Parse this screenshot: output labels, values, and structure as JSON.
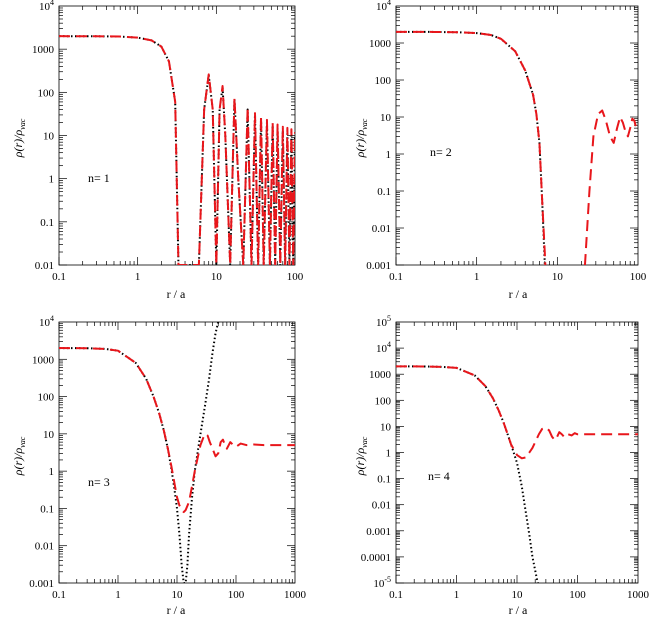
{
  "colors": {
    "exact": "#000000",
    "approx": "#e8161b",
    "frame": "#000000"
  },
  "chart_data": [
    {
      "id": "p1",
      "type": "line",
      "xscale": "log",
      "yscale": "log",
      "xlim": [
        0.1,
        100
      ],
      "ylim": [
        0.01,
        10000
      ],
      "xticks": [
        {
          "v": 0.1,
          "label": "0.1"
        },
        {
          "v": 1,
          "label": "1"
        },
        {
          "v": 10,
          "label": "10"
        },
        {
          "v": 100,
          "label": "100"
        }
      ],
      "yticks": [
        {
          "v": 0.01,
          "label": "0.01"
        },
        {
          "v": 0.1,
          "label": "0.1"
        },
        {
          "v": 1,
          "label": "1"
        },
        {
          "v": 10,
          "label": "10"
        },
        {
          "v": 100,
          "label": "100"
        },
        {
          "v": 1000,
          "label": "1000"
        },
        {
          "v": 10000,
          "label": "10",
          "sup": "4"
        }
      ],
      "xlabel": "r / a",
      "ylabel": {
        "main": "ρ(r)/ρ",
        "sub": "vac"
      },
      "annotation": "n= 1",
      "series": [
        {
          "name": "exact",
          "style": "dotted",
          "color": "#000000",
          "x": [
            0.1,
            0.3,
            0.6,
            1,
            1.5,
            2,
            2.5,
            3,
            3.3,
            3.5,
            6,
            7,
            8,
            9,
            10,
            11,
            12,
            13,
            15,
            17,
            19,
            22,
            25,
            28,
            31,
            34,
            37,
            40,
            44,
            48,
            52,
            56,
            60,
            65,
            70,
            75,
            80,
            85,
            90,
            95,
            100
          ],
          "y": [
            2000,
            1990,
            1960,
            1850,
            1600,
            1150,
            520,
            60,
            0.01,
            0.01,
            0.01,
            40,
            250,
            40,
            0.01,
            40,
            130,
            10,
            0.01,
            70,
            1,
            0.01,
            40,
            0.01,
            30,
            0.01,
            25,
            0.01,
            20,
            0.01,
            17,
            0.01,
            15,
            0.01,
            13,
            0.01,
            12,
            0.01,
            11,
            0.01,
            10
          ]
        },
        {
          "name": "approx",
          "style": "dashed",
          "color": "#e8161b",
          "x": [
            0.1,
            0.3,
            0.6,
            1,
            1.5,
            2,
            2.5,
            3,
            3.3,
            3.5,
            6,
            7,
            8,
            9,
            10,
            11,
            12,
            13,
            15,
            17,
            19,
            22,
            25,
            28,
            31,
            34,
            37,
            40,
            44,
            48,
            52,
            56,
            60,
            65,
            70,
            75,
            80,
            85,
            90,
            95,
            100
          ],
          "y": [
            2000,
            1990,
            1960,
            1850,
            1600,
            1150,
            520,
            60,
            0.01,
            0.01,
            0.01,
            40,
            260,
            40,
            0.01,
            40,
            140,
            10,
            0.01,
            75,
            1,
            0.01,
            45,
            0.01,
            33,
            0.01,
            28,
            0.01,
            23,
            0.01,
            20,
            0.01,
            18,
            0.01,
            16,
            0.01,
            15,
            0.01,
            14,
            0.01,
            12
          ]
        }
      ]
    },
    {
      "id": "p2",
      "type": "line",
      "xscale": "log",
      "yscale": "log",
      "xlim": [
        0.1,
        100
      ],
      "ylim": [
        0.001,
        10000
      ],
      "xticks": [
        {
          "v": 0.1,
          "label": "0.1"
        },
        {
          "v": 1,
          "label": "1"
        },
        {
          "v": 10,
          "label": "10"
        },
        {
          "v": 100,
          "label": "100"
        }
      ],
      "yticks": [
        {
          "v": 0.001,
          "label": "0.001"
        },
        {
          "v": 0.01,
          "label": "0.01"
        },
        {
          "v": 0.1,
          "label": "0.1"
        },
        {
          "v": 1,
          "label": "1"
        },
        {
          "v": 10,
          "label": "10"
        },
        {
          "v": 100,
          "label": "100"
        },
        {
          "v": 1000,
          "label": "1000"
        },
        {
          "v": 10000,
          "label": "10",
          "sup": "4"
        }
      ],
      "xlabel": "r / a",
      "ylabel": {
        "main": "ρ(r)/ρ",
        "sub": "vac"
      },
      "annotation": "n= 2",
      "series": [
        {
          "name": "exact",
          "style": "dotted",
          "color": "#000000",
          "x": [
            0.1,
            0.3,
            0.6,
            1,
            1.5,
            2,
            3,
            4,
            5,
            5.5,
            6,
            6.5,
            7
          ],
          "y": [
            2000,
            1990,
            1950,
            1850,
            1650,
            1300,
            600,
            180,
            40,
            12,
            2,
            0.05,
            0.001
          ]
        },
        {
          "name": "approx",
          "style": "dashed",
          "color": "#e8161b",
          "x": [
            0.1,
            0.3,
            0.6,
            1,
            1.5,
            2,
            3,
            4,
            5,
            5.5,
            6,
            6.5,
            7,
            7.1
          ],
          "y": [
            2000,
            1990,
            1950,
            1850,
            1650,
            1300,
            600,
            180,
            40,
            12,
            2,
            0.05,
            0.002,
            0.001
          ]
        },
        {
          "name": "approx-tail",
          "style": "dashed",
          "color": "#e8161b",
          "x": [
            22,
            25,
            28,
            32,
            36,
            40,
            45,
            50,
            55,
            60,
            65,
            70,
            75,
            80,
            85,
            90,
            95,
            100
          ],
          "y": [
            0.001,
            0.1,
            3,
            12,
            15,
            8,
            3,
            2,
            5,
            10,
            7,
            4,
            3,
            5,
            9,
            8,
            5,
            4
          ]
        }
      ]
    },
    {
      "id": "p3",
      "type": "line",
      "xscale": "log",
      "yscale": "log",
      "xlim": [
        0.1,
        1000
      ],
      "ylim": [
        0.001,
        10000
      ],
      "xticks": [
        {
          "v": 0.1,
          "label": "0.1"
        },
        {
          "v": 1,
          "label": "1"
        },
        {
          "v": 10,
          "label": "10"
        },
        {
          "v": 100,
          "label": "100"
        },
        {
          "v": 1000,
          "label": "1000"
        }
      ],
      "yticks": [
        {
          "v": 0.001,
          "label": "0.001"
        },
        {
          "v": 0.01,
          "label": "0.01"
        },
        {
          "v": 0.1,
          "label": "0.1"
        },
        {
          "v": 1,
          "label": "1"
        },
        {
          "v": 10,
          "label": "10"
        },
        {
          "v": 100,
          "label": "100"
        },
        {
          "v": 1000,
          "label": "1000"
        },
        {
          "v": 10000,
          "label": "10",
          "sup": "4"
        }
      ],
      "xlabel": "r / a",
      "ylabel": {
        "main": "ρ(r)/ρ",
        "sub": "vac"
      },
      "annotation": "n= 3",
      "series": [
        {
          "name": "exact",
          "style": "dotted",
          "color": "#000000",
          "x": [
            0.1,
            0.3,
            0.6,
            1,
            2,
            3,
            4,
            5,
            6,
            7,
            8,
            9,
            10,
            11,
            12,
            13,
            14,
            15,
            16,
            18,
            20,
            25,
            30,
            35,
            40,
            45,
            50
          ],
          "y": [
            2000,
            1980,
            1900,
            1700,
            800,
            300,
            100,
            35,
            12,
            4,
            1.2,
            0.35,
            0.1,
            0.02,
            0.003,
            0.001,
            0.001,
            0.003,
            0.02,
            0.2,
            1,
            10,
            60,
            300,
            1500,
            5000,
            10000
          ]
        },
        {
          "name": "approx",
          "style": "dashed",
          "color": "#e8161b",
          "x": [
            0.1,
            0.3,
            0.6,
            1,
            2,
            3,
            4,
            5,
            6,
            7,
            8,
            9,
            10,
            11,
            12,
            13,
            14,
            16,
            18,
            20,
            22,
            25,
            28,
            30,
            33,
            36,
            40,
            45,
            50,
            55,
            60,
            65,
            70,
            80,
            90,
            100,
            120,
            150,
            200,
            300,
            500,
            1000
          ],
          "y": [
            2000,
            1980,
            1900,
            1700,
            800,
            300,
            100,
            35,
            12,
            4,
            1.4,
            0.5,
            0.2,
            0.12,
            0.09,
            0.08,
            0.09,
            0.15,
            0.4,
            1,
            2,
            5,
            8,
            10,
            9,
            6,
            4,
            2.5,
            3,
            6,
            7,
            5,
            4,
            6,
            5,
            4.5,
            5.5,
            5,
            5.2,
            5,
            5,
            5
          ]
        }
      ]
    },
    {
      "id": "p4",
      "type": "line",
      "xscale": "log",
      "yscale": "log",
      "xlim": [
        0.1,
        1000
      ],
      "ylim": [
        1e-05,
        100000
      ],
      "xticks": [
        {
          "v": 0.1,
          "label": "0.1"
        },
        {
          "v": 1,
          "label": "1"
        },
        {
          "v": 10,
          "label": "10"
        },
        {
          "v": 100,
          "label": "100"
        },
        {
          "v": 1000,
          "label": "1000"
        }
      ],
      "yticks": [
        {
          "v": 1e-05,
          "label": "10",
          "sup": "-5"
        },
        {
          "v": 0.0001,
          "label": "0.0001"
        },
        {
          "v": 0.001,
          "label": "0.001"
        },
        {
          "v": 0.01,
          "label": "0.01"
        },
        {
          "v": 0.1,
          "label": "0.1"
        },
        {
          "v": 1,
          "label": "1"
        },
        {
          "v": 10,
          "label": "10"
        },
        {
          "v": 100,
          "label": "100"
        },
        {
          "v": 1000,
          "label": "1000"
        },
        {
          "v": 10000,
          "label": "10",
          "sup": "4"
        },
        {
          "v": 100000,
          "label": "10",
          "sup": "5"
        }
      ],
      "xlabel": "r / a",
      "ylabel": {
        "main": "ρ(r)/ρ",
        "sub": "vac"
      },
      "annotation": "n= 4",
      "series": [
        {
          "name": "exact",
          "style": "dotted",
          "color": "#000000",
          "x": [
            0.1,
            0.3,
            0.6,
            1,
            2,
            3,
            4,
            5,
            6,
            7,
            8,
            10,
            12,
            14,
            16,
            18,
            20,
            22,
            24,
            25
          ],
          "y": [
            2000,
            1980,
            1900,
            1750,
            900,
            350,
            120,
            40,
            14,
            5,
            2,
            0.4,
            0.05,
            0.005,
            0.0007,
            0.0001,
            3e-05,
            1e-05,
            1e-05,
            1e-05
          ]
        },
        {
          "name": "approx",
          "style": "dashed",
          "color": "#e8161b",
          "x": [
            0.1,
            0.3,
            0.6,
            1,
            2,
            3,
            4,
            5,
            6,
            7,
            8,
            10,
            12,
            14,
            16,
            18,
            20,
            23,
            26,
            30,
            34,
            38,
            42,
            46,
            50,
            55,
            60,
            65,
            70,
            80,
            90,
            100,
            120,
            150,
            200,
            300,
            500,
            1000
          ],
          "y": [
            2000,
            1980,
            1900,
            1750,
            900,
            350,
            120,
            40,
            14,
            5,
            2,
            0.8,
            0.6,
            0.65,
            1,
            1.5,
            2.5,
            5,
            8,
            9,
            7,
            4,
            3,
            4,
            6,
            5,
            4,
            5,
            5,
            4.5,
            5.5,
            5,
            5,
            5,
            5,
            5,
            5,
            5
          ]
        }
      ]
    }
  ]
}
